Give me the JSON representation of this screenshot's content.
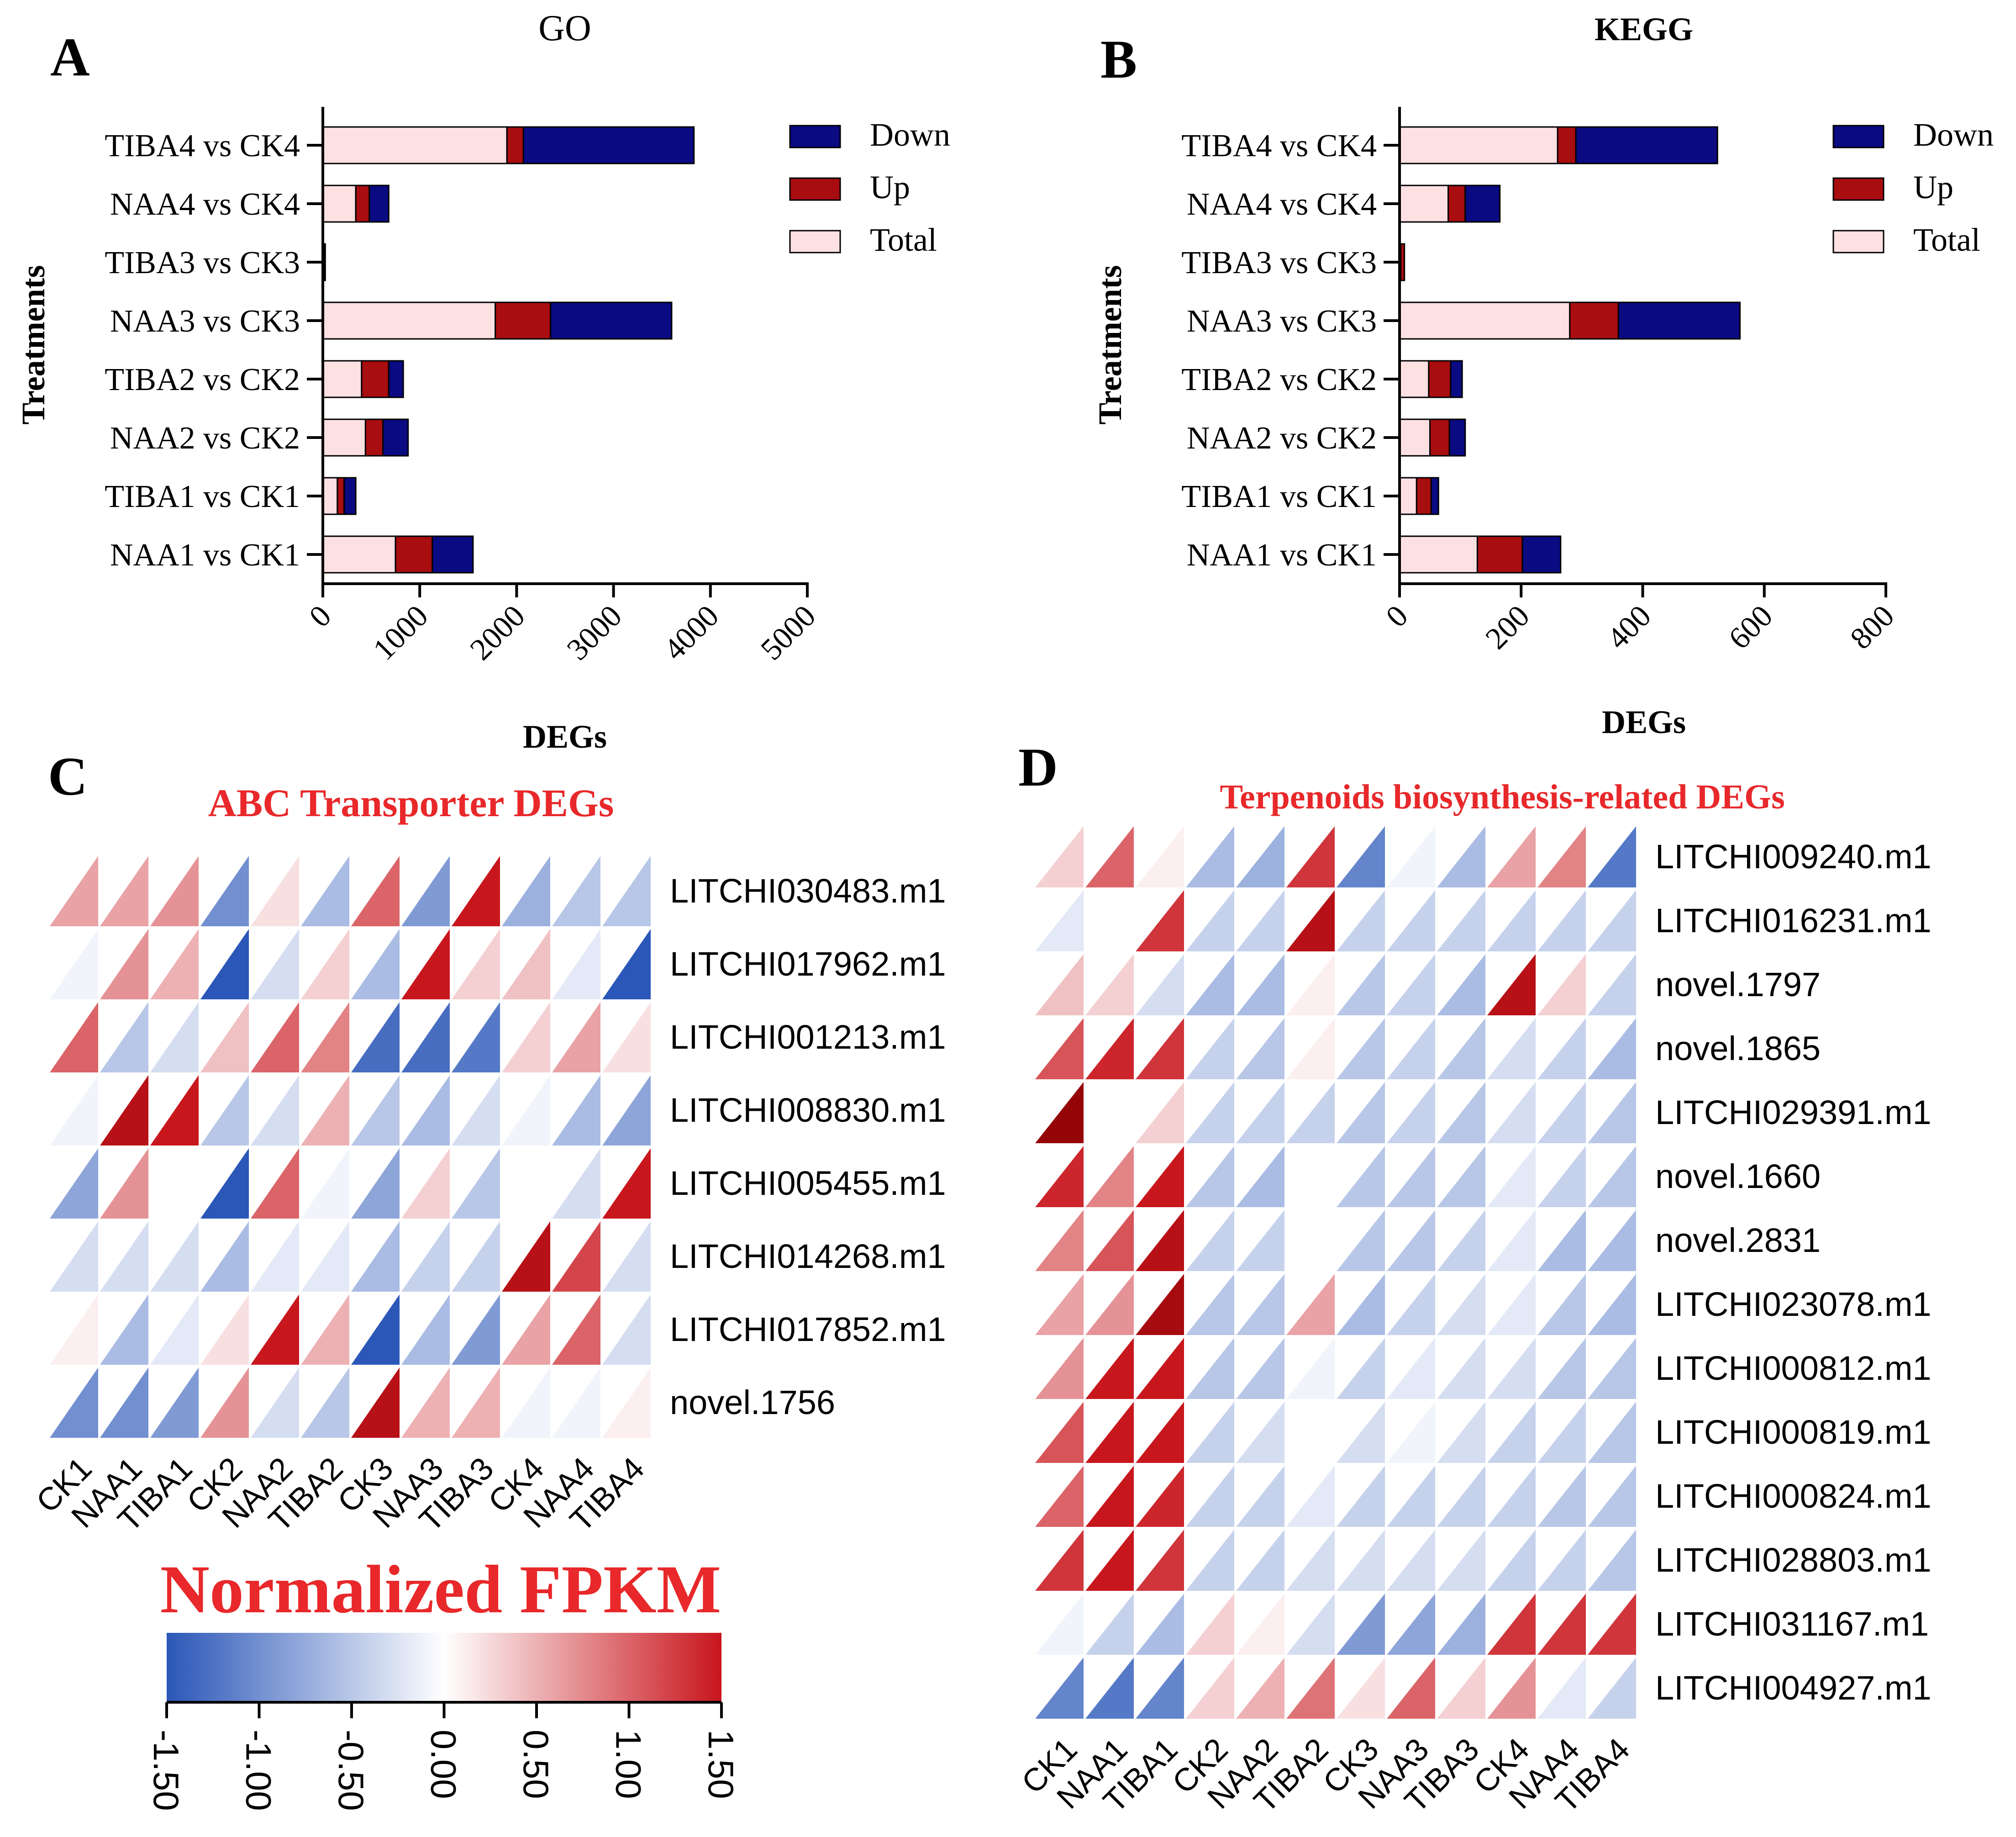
{
  "colors": {
    "total": "#fde0e2",
    "up": "#a80d10",
    "down": "#0a0a82",
    "heat_low": "#2b57b8",
    "heat_mid": "#ffffff",
    "heat_high": "#c8161d",
    "heat_title": "#e8282a",
    "axis": "#000000"
  },
  "panels": {
    "a": "A",
    "b": "B",
    "c": "C",
    "d": "D"
  },
  "colorbar": {
    "title": "Normalized FPKM",
    "ticks": [
      "-1.50",
      "-1.00",
      "-0.50",
      "0.00",
      "0.50",
      "1.00",
      "1.50"
    ],
    "range": [
      -1.5,
      1.5
    ]
  },
  "chart_data": [
    {
      "id": "go",
      "type": "bar",
      "orientation": "horizontal",
      "stacked": true,
      "title": "GO",
      "xlabel": "DEGs",
      "ylabel": "Treatments",
      "xlim": [
        0,
        5000
      ],
      "xticks": [
        "0",
        "1000",
        "2000",
        "3000",
        "4000",
        "5000"
      ],
      "categories": [
        "TIBA4 vs CK4",
        "NAA4 vs CK4",
        "TIBA3 vs CK3",
        "NAA3 vs CK3",
        "TIBA2 vs CK2",
        "NAA2 vs CK2",
        "TIBA1 vs CK1",
        "NAA1 vs CK1"
      ],
      "legend": [
        "Down",
        "Up",
        "Total"
      ],
      "series": [
        {
          "name": "Total",
          "values": [
            1900,
            340,
            5,
            1780,
            400,
            440,
            150,
            750
          ]
        },
        {
          "name": "Up",
          "values": [
            170,
            140,
            10,
            570,
            280,
            180,
            70,
            380
          ]
        },
        {
          "name": "Down",
          "values": [
            1760,
            200,
            10,
            1250,
            150,
            260,
            120,
            420
          ]
        }
      ]
    },
    {
      "id": "kegg",
      "type": "bar",
      "orientation": "horizontal",
      "stacked": true,
      "title": "KEGG",
      "xlabel": "DEGs",
      "ylabel": "Treatments",
      "xlim": [
        0,
        800
      ],
      "xticks": [
        "0",
        "200",
        "400",
        "600",
        "800"
      ],
      "categories": [
        "TIBA4 vs CK4",
        "NAA4 vs CK4",
        "TIBA3 vs CK3",
        "NAA3 vs CK3",
        "TIBA2 vs CK2",
        "NAA2 vs CK2",
        "TIBA1 vs CK1",
        "NAA1 vs CK1"
      ],
      "legend": [
        "Down",
        "Up",
        "Total"
      ],
      "series": [
        {
          "name": "Total",
          "values": [
            260,
            80,
            2,
            280,
            48,
            50,
            28,
            128
          ]
        },
        {
          "name": "Up",
          "values": [
            30,
            28,
            6,
            80,
            36,
            32,
            24,
            74
          ]
        },
        {
          "name": "Down",
          "values": [
            233,
            57,
            0,
            200,
            19,
            26,
            12,
            63
          ]
        }
      ]
    },
    {
      "id": "abc",
      "type": "heatmap",
      "title": "ABC Transporter DEGs",
      "columns": [
        "CK1",
        "NAA1",
        "TIBA1",
        "CK2",
        "NAA2",
        "TIBA2",
        "CK3",
        "NAA3",
        "TIBA3",
        "CK4",
        "NAA4",
        "TIBA4"
      ],
      "rows": [
        "LITCHI030483.m1",
        "LITCHI017962.m1",
        "LITCHI001213.m1",
        "LITCHI008830.m1",
        "LITCHI005455.m1",
        "LITCHI014268.m1",
        "LITCHI017852.m1",
        "novel.1756"
      ],
      "values": [
        [
          0.6,
          0.6,
          0.7,
          -1.0,
          0.2,
          -0.6,
          1.0,
          -0.9,
          1.5,
          -0.7,
          -0.5,
          -0.5
        ],
        [
          -0.1,
          0.7,
          0.5,
          -1.5,
          -0.3,
          0.3,
          -0.6,
          1.5,
          0.3,
          0.4,
          -0.2,
          -1.5
        ],
        [
          1.0,
          -0.5,
          -0.3,
          0.4,
          1.0,
          0.8,
          -1.3,
          -1.3,
          -1.2,
          0.3,
          0.6,
          0.2
        ],
        [
          -0.1,
          1.6,
          1.5,
          -0.5,
          -0.3,
          0.5,
          -0.5,
          -0.6,
          -0.3,
          -0.1,
          -0.6,
          -0.8
        ],
        [
          -0.8,
          0.7,
          0.0,
          -1.5,
          1.0,
          -0.1,
          -0.8,
          0.3,
          -0.5,
          0.0,
          -0.3,
          1.5
        ],
        [
          -0.3,
          -0.3,
          -0.3,
          -0.6,
          -0.2,
          -0.2,
          -0.6,
          -0.4,
          -0.4,
          1.6,
          1.2,
          -0.3
        ],
        [
          0.1,
          -0.6,
          -0.2,
          0.2,
          1.5,
          0.5,
          -1.5,
          -0.6,
          -0.9,
          0.6,
          1.0,
          -0.3
        ],
        [
          -1.0,
          -1.0,
          -0.9,
          0.7,
          -0.3,
          -0.5,
          1.6,
          0.5,
          0.5,
          -0.1,
          -0.1,
          0.1
        ]
      ]
    },
    {
      "id": "terp",
      "type": "heatmap",
      "title": "Terpenoids biosynthesis-related DEGs",
      "columns": [
        "CK1",
        "NAA1",
        "TIBA1",
        "CK2",
        "NAA2",
        "TIBA2",
        "CK3",
        "NAA3",
        "TIBA3",
        "CK4",
        "NAA4",
        "TIBA4"
      ],
      "rows": [
        "LITCHI009240.m1",
        "LITCHI016231.m1",
        "novel.1797",
        "novel.1865",
        "LITCHI029391.m1",
        "novel.1660",
        "novel.2831",
        "LITCHI023078.m1",
        "LITCHI000812.m1",
        "LITCHI000819.m1",
        "LITCHI000824.m1",
        "LITCHI028803.m1",
        "LITCHI031167.m1",
        "LITCHI004927.m1"
      ],
      "values": [
        [
          0.3,
          1.0,
          0.1,
          -0.6,
          -0.7,
          1.3,
          -1.1,
          -0.1,
          -0.6,
          0.6,
          0.8,
          -1.2
        ],
        [
          -0.2,
          0.0,
          1.3,
          -0.4,
          -0.4,
          1.6,
          -0.4,
          -0.4,
          -0.4,
          -0.4,
          -0.4,
          -0.4
        ],
        [
          0.4,
          0.3,
          -0.3,
          -0.6,
          -0.6,
          0.1,
          -0.5,
          -0.4,
          -0.6,
          1.6,
          0.3,
          -0.4
        ],
        [
          1.1,
          1.4,
          1.3,
          -0.4,
          -0.5,
          0.1,
          -0.5,
          -0.4,
          -0.5,
          -0.3,
          -0.4,
          -0.6
        ],
        [
          1.8,
          0.0,
          0.3,
          -0.4,
          -0.4,
          -0.4,
          -0.5,
          -0.4,
          -0.5,
          -0.3,
          -0.4,
          -0.5
        ],
        [
          1.4,
          0.8,
          1.5,
          -0.5,
          -0.6,
          0.0,
          -0.5,
          -0.5,
          -0.5,
          -0.2,
          -0.4,
          -0.5
        ],
        [
          0.8,
          1.1,
          1.6,
          -0.4,
          -0.4,
          0.0,
          -0.5,
          -0.5,
          -0.4,
          -0.2,
          -0.6,
          -0.6
        ],
        [
          0.6,
          0.7,
          1.7,
          -0.5,
          -0.5,
          0.6,
          -0.6,
          -0.4,
          -0.3,
          -0.2,
          -0.5,
          -0.6
        ],
        [
          0.7,
          1.5,
          1.5,
          -0.5,
          -0.5,
          -0.1,
          -0.4,
          -0.2,
          -0.3,
          -0.3,
          -0.5,
          -0.5
        ],
        [
          1.1,
          1.5,
          1.5,
          -0.4,
          -0.3,
          0.0,
          -0.3,
          -0.1,
          -0.3,
          -0.4,
          -0.4,
          -0.5
        ],
        [
          1.0,
          1.5,
          1.4,
          -0.4,
          -0.4,
          -0.2,
          -0.4,
          -0.4,
          -0.4,
          -0.4,
          -0.5,
          -0.5
        ],
        [
          1.3,
          1.5,
          1.3,
          -0.4,
          -0.4,
          -0.3,
          -0.3,
          -0.3,
          -0.3,
          -0.4,
          -0.4,
          -0.5
        ],
        [
          -0.1,
          -0.4,
          -0.6,
          0.3,
          0.1,
          -0.3,
          -0.9,
          -0.8,
          -0.7,
          1.3,
          1.3,
          1.3
        ],
        [
          -1.1,
          -1.2,
          -1.1,
          0.3,
          0.5,
          0.9,
          0.2,
          1.0,
          0.3,
          0.7,
          -0.2,
          -0.4
        ]
      ]
    }
  ]
}
